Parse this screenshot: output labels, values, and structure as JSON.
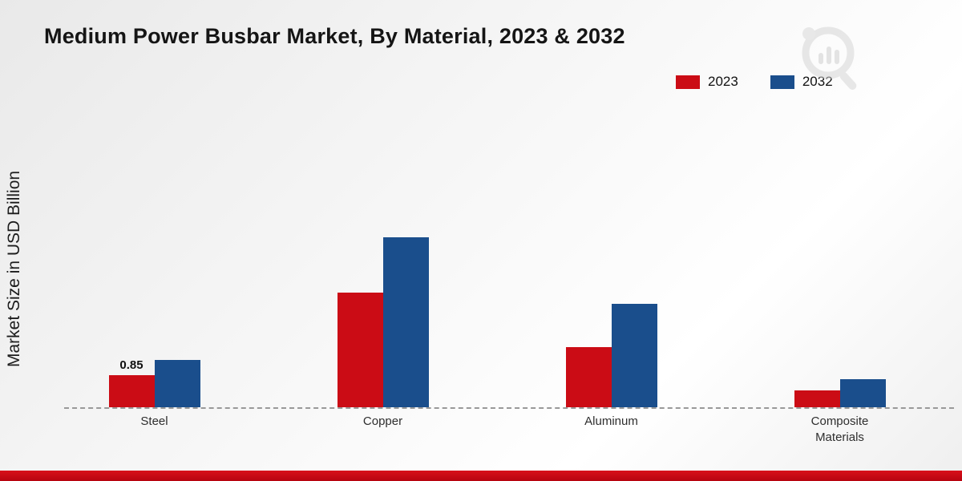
{
  "page": {
    "title": "Medium Power Busbar Market, By Material, 2023 & 2032",
    "ylabel": "Market Size in USD Billion"
  },
  "colors": {
    "series_2023": "#cb0c15",
    "series_2032": "#1a4e8c",
    "footer_band": "#c60c12",
    "baseline": "#999999"
  },
  "chart_data": {
    "type": "bar",
    "title": "Medium Power Busbar Market, By Material, 2023 & 2032",
    "ylabel": "Market Size in USD Billion",
    "categories": [
      "Steel",
      "Copper",
      "Aluminum",
      "Composite Materials"
    ],
    "series": [
      {
        "name": "2023",
        "color": "#cb0c15",
        "values": [
          0.85,
          3.05,
          1.6,
          0.45
        ]
      },
      {
        "name": "2032",
        "color": "#1a4e8c",
        "values": [
          1.25,
          4.5,
          2.75,
          0.75
        ]
      }
    ],
    "annotations": [
      {
        "category": "Steel",
        "series": "2023",
        "text": "0.85"
      }
    ],
    "ylim": [
      0,
      5
    ],
    "grid": false,
    "baseline_style": "dashed",
    "legend_position": "top-right"
  }
}
